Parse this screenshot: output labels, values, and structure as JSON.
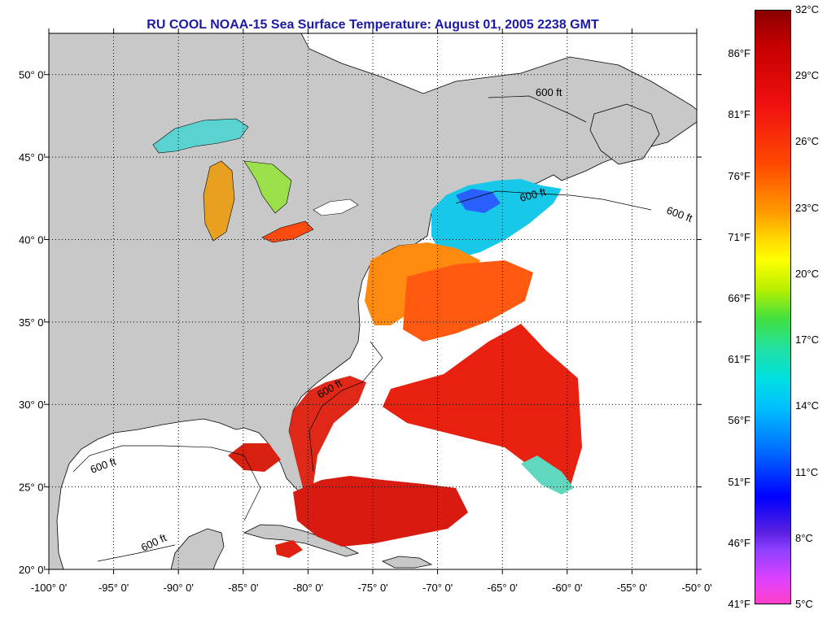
{
  "title": "RU COOL  NOAA-15  Sea Surface Temperature:  August 01, 2005 2238 GMT",
  "map": {
    "lon_range": [
      -100,
      -50
    ],
    "lat_range": [
      20,
      52.5
    ],
    "lon_ticks": [
      "-100° 0'",
      "-95° 0'",
      "-90° 0'",
      "-85° 0'",
      "-80° 0'",
      "-75° 0'",
      "-70° 0'",
      "-65° 0'",
      "-60° 0'",
      "-55° 0'",
      "-50° 0'"
    ],
    "lat_ticks": [
      "50° 0'",
      "45° 0'",
      "40° 0'",
      "35° 0'",
      "30° 0'",
      "25° 0'",
      "20° 0'"
    ],
    "contour_label": "600 ft",
    "land_color": "#c8c8c8",
    "no_data_color": "#ffffff",
    "grid": true
  },
  "colorbar": {
    "celsius": [
      "32°C",
      "29°C",
      "26°C",
      "23°C",
      "20°C",
      "17°C",
      "14°C",
      "11°C",
      "8°C",
      "5°C"
    ],
    "fahrenheit": [
      "86°F",
      "81°F",
      "76°F",
      "71°F",
      "66°F",
      "61°F",
      "56°F",
      "51°F",
      "46°F",
      "41°F"
    ],
    "min_c": 5,
    "max_c": 32,
    "min_f": 41,
    "max_f": 89.6
  }
}
